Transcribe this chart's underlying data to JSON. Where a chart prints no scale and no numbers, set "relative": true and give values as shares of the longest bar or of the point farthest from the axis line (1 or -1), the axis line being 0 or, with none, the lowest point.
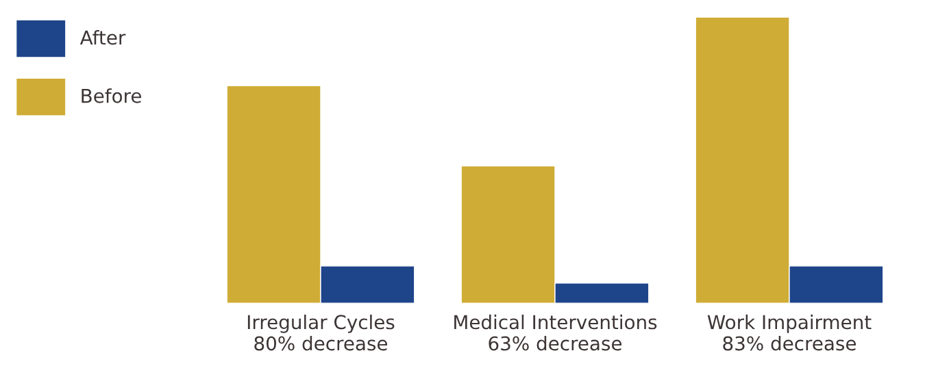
{
  "chart_data": {
    "type": "bar",
    "relative": true,
    "categories": [
      "Irregular Cycles\n80% decrease",
      "Medical Interventions\n63% decrease",
      "Work Impairment\n83% decrease"
    ],
    "series": [
      {
        "name": "Before",
        "color": "#cfac35",
        "values": [
          0.76,
          0.48,
          1
        ]
      },
      {
        "name": "After",
        "color": "#1e448a",
        "values": [
          0.13,
          0.07,
          0.13
        ]
      }
    ],
    "legend": "left",
    "grid": false
  }
}
